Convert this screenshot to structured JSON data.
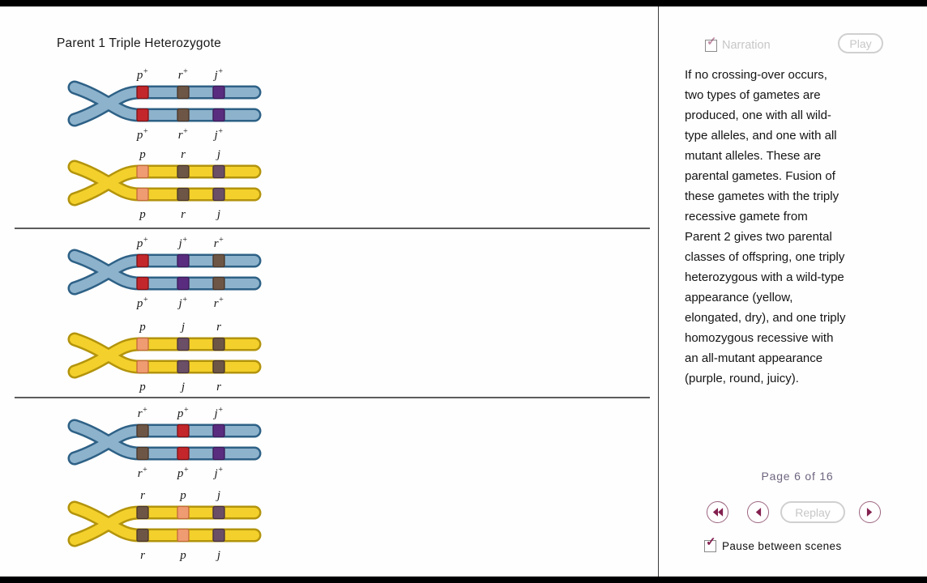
{
  "title": "Parent 1 Triple Heterozygote",
  "groups": [
    {
      "chromosomes": [
        {
          "scheme": "blue",
          "alleles": [
            {
              "base": "p",
              "sup": "+",
              "band": "red"
            },
            {
              "base": "r",
              "sup": "+",
              "band": "brown"
            },
            {
              "base": "j",
              "sup": "+",
              "band": "purple"
            }
          ]
        },
        {
          "scheme": "yellow",
          "alleles": [
            {
              "base": "p",
              "sup": "",
              "band": "salmon"
            },
            {
              "base": "r",
              "sup": "",
              "band": "brown"
            },
            {
              "base": "j",
              "sup": "",
              "band": "plum"
            }
          ]
        }
      ]
    },
    {
      "chromosomes": [
        {
          "scheme": "blue",
          "alleles": [
            {
              "base": "p",
              "sup": "+",
              "band": "red"
            },
            {
              "base": "j",
              "sup": "+",
              "band": "purple"
            },
            {
              "base": "r",
              "sup": "+",
              "band": "brown"
            }
          ]
        },
        {
          "scheme": "yellow",
          "alleles": [
            {
              "base": "p",
              "sup": "",
              "band": "salmon"
            },
            {
              "base": "j",
              "sup": "",
              "band": "plum"
            },
            {
              "base": "r",
              "sup": "",
              "band": "brown"
            }
          ]
        }
      ]
    },
    {
      "chromosomes": [
        {
          "scheme": "blue",
          "alleles": [
            {
              "base": "r",
              "sup": "+",
              "band": "brown"
            },
            {
              "base": "p",
              "sup": "+",
              "band": "red"
            },
            {
              "base": "j",
              "sup": "+",
              "band": "purple"
            }
          ]
        },
        {
          "scheme": "yellow",
          "alleles": [
            {
              "base": "r",
              "sup": "",
              "band": "brown"
            },
            {
              "base": "p",
              "sup": "",
              "band": "salmon"
            },
            {
              "base": "j",
              "sup": "",
              "band": "plum"
            }
          ]
        }
      ]
    }
  ],
  "panel": {
    "narration_label": "Narration",
    "narration_checked": true,
    "play_label": "Play",
    "narration_text": "If no crossing-over occurs,\ntwo types of gametes are\nproduced, one with all wild-\ntype alleles, and one with all\nmutant alleles. These are\nparental gametes. Fusion of\nthese gametes with the triply\nrecessive gamete from\nParent 2 gives two parental\nclasses of offspring, one triply\nheterozygous with a wild-type\nappearance (yellow,\nelongated, dry), and one triply\nhomozygous recessive with\nan all-mutant appearance\n(purple, round, juicy).",
    "page_indicator": "Page 6 of 16",
    "replay_label": "Replay",
    "pause_label": "Pause between scenes",
    "pause_checked": true,
    "check_glyph": "✓"
  },
  "colors": {
    "schemes": {
      "blue": {
        "fill": "#8db2cc",
        "outline": "#2e6186"
      },
      "yellow": {
        "fill": "#f3d02b",
        "outline": "#b3940c"
      }
    },
    "bands": {
      "red": {
        "fill": "#c3272b",
        "stroke": "#7e1113"
      },
      "brown": {
        "fill": "#6e5646",
        "stroke": "#483528"
      },
      "purple": {
        "fill": "#5a2c80",
        "stroke": "#3a1a56"
      },
      "salmon": {
        "fill": "#f09c72",
        "stroke": "#c2693c"
      },
      "plum": {
        "fill": "#6b4f66",
        "stroke": "#46313f"
      }
    },
    "accent": "#83204f",
    "nav_border": "#9c6681",
    "disabled": "#c7c7c7",
    "page_text": "#6f657f"
  }
}
